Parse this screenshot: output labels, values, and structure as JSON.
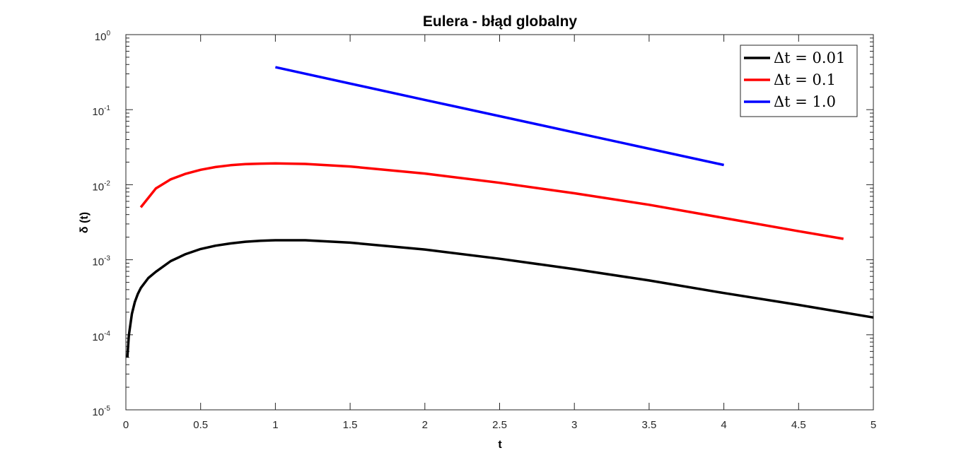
{
  "chart_data": {
    "type": "line",
    "title": "Eulera - błąd globalny",
    "xlabel": "t",
    "ylabel": "δ (t)",
    "xlim": [
      0,
      5
    ],
    "ylim": [
      1e-05,
      1
    ],
    "yscale": "log",
    "grid": false,
    "legend_position": "top-right",
    "xticks": [
      0,
      0.5,
      1,
      1.5,
      2,
      2.5,
      3,
      3.5,
      4,
      4.5,
      5
    ],
    "xtick_labels": [
      "0",
      "0.5",
      "1",
      "1.5",
      "2",
      "2.5",
      "3",
      "3.5",
      "4",
      "4.5",
      "5"
    ],
    "yticks": [
      {
        "value": 1e-05,
        "base": "10",
        "exp": "-5"
      },
      {
        "value": 0.0001,
        "base": "10",
        "exp": "-4"
      },
      {
        "value": 0.001,
        "base": "10",
        "exp": "-3"
      },
      {
        "value": 0.01,
        "base": "10",
        "exp": "-2"
      },
      {
        "value": 0.1,
        "base": "10",
        "exp": "-1"
      },
      {
        "value": 1,
        "base": "10",
        "exp": "0"
      }
    ],
    "series": [
      {
        "name": "Δt = 0.01",
        "color": "#000000",
        "x": [
          0.01,
          0.02,
          0.04,
          0.06,
          0.08,
          0.1,
          0.15,
          0.2,
          0.3,
          0.4,
          0.5,
          0.6,
          0.7,
          0.8,
          0.9,
          1.0,
          1.2,
          1.5,
          2.0,
          2.5,
          3.0,
          3.5,
          4.0,
          4.5,
          5.0
        ],
        "y": [
          5e-05,
          9.8e-05,
          0.00019,
          0.000274,
          0.00035,
          0.00042,
          0.00057,
          0.00069,
          0.00096,
          0.00119,
          0.00139,
          0.00154,
          0.00165,
          0.00174,
          0.00179,
          0.00182,
          0.00182,
          0.00169,
          0.00137,
          0.00103,
          0.00075,
          0.00053,
          0.00036,
          0.00025,
          0.00017
        ]
      },
      {
        "name": "Δt = 0.1",
        "color": "#ff0000",
        "x": [
          0.1,
          0.2,
          0.3,
          0.4,
          0.5,
          0.6,
          0.7,
          0.8,
          0.9,
          1.0,
          1.2,
          1.5,
          2.0,
          2.5,
          3.0,
          3.5,
          4.0,
          4.5,
          4.8
        ],
        "y": [
          0.005,
          0.0089,
          0.0118,
          0.014,
          0.0158,
          0.0172,
          0.0182,
          0.0188,
          0.0191,
          0.0192,
          0.0189,
          0.0175,
          0.0141,
          0.0106,
          0.0077,
          0.0054,
          0.0036,
          0.0024,
          0.0019
        ]
      },
      {
        "name": "Δt = 1.0",
        "color": "#0000ff",
        "x": [
          1,
          2,
          3,
          4
        ],
        "y": [
          0.368,
          0.135,
          0.0498,
          0.0183
        ]
      }
    ]
  }
}
